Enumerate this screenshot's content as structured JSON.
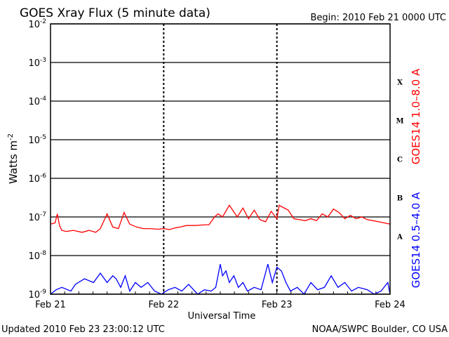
{
  "chart_data": {
    "type": "line",
    "title": "GOES Xray Flux (5 minute data)",
    "begin_label": "Begin:  2010 Feb 21 0000 UTC",
    "updated_label": "Updated 2010 Feb 23 23:00:12 UTC",
    "credit": "NOAA/SWPC Boulder, CO USA",
    "xlabel": "Universal Time",
    "ylabel_text": "Watts m",
    "ylabel_sup": "-2",
    "x_ticks": [
      "Feb 21",
      "Feb 22",
      "Feb 23",
      "Feb 24"
    ],
    "x_range_days": [
      0,
      3
    ],
    "y_scale": "log",
    "y_range": [
      1e-09,
      0.01
    ],
    "y_ticks": [
      {
        "base": "10",
        "exp": "-2",
        "value": 0.01
      },
      {
        "base": "10",
        "exp": "-3",
        "value": 0.001
      },
      {
        "base": "10",
        "exp": "-4",
        "value": 0.0001
      },
      {
        "base": "10",
        "exp": "-5",
        "value": 1e-05
      },
      {
        "base": "10",
        "exp": "-6",
        "value": 1e-06
      },
      {
        "base": "10",
        "exp": "-7",
        "value": 1e-07
      },
      {
        "base": "10",
        "exp": "-8",
        "value": 1e-08
      },
      {
        "base": "10",
        "exp": "-9",
        "value": 1e-09
      }
    ],
    "flare_classes": [
      {
        "label": "X",
        "lower": 0.0001,
        "upper": 0.001
      },
      {
        "label": "M",
        "lower": 1e-05,
        "upper": 0.0001
      },
      {
        "label": "C",
        "lower": 1e-06,
        "upper": 1e-05
      },
      {
        "label": "B",
        "lower": 1e-07,
        "upper": 1e-06
      },
      {
        "label": "A",
        "lower": 1e-08,
        "upper": 1e-07
      }
    ],
    "grid": "horizontal lines at each decade; dashed verticals at day boundaries",
    "series": [
      {
        "name": "GOES14 1.0–8.0 A",
        "color": "#ff0000",
        "x": [
          0.0,
          0.04,
          0.06,
          0.08,
          0.1,
          0.14,
          0.2,
          0.28,
          0.34,
          0.4,
          0.44,
          0.5,
          0.55,
          0.6,
          0.65,
          0.7,
          0.76,
          0.82,
          0.88,
          0.95,
          1.0,
          1.05,
          1.1,
          1.15,
          1.2,
          1.28,
          1.35,
          1.4,
          1.45,
          1.48,
          1.52,
          1.58,
          1.65,
          1.7,
          1.75,
          1.8,
          1.85,
          1.9,
          1.95,
          2.0,
          2.02,
          2.05,
          2.1,
          2.15,
          2.2,
          2.25,
          2.3,
          2.35,
          2.4,
          2.45,
          2.5,
          2.55,
          2.6,
          2.65,
          2.7,
          2.75,
          2.8,
          2.85,
          2.9,
          2.95,
          3.0
        ],
        "y": [
          6.5e-08,
          7e-08,
          1.2e-07,
          6e-08,
          4.5e-08,
          4.2e-08,
          4.5e-08,
          4e-08,
          4.5e-08,
          4e-08,
          5e-08,
          1.2e-07,
          5.5e-08,
          5e-08,
          1.3e-07,
          6.5e-08,
          5.5e-08,
          5e-08,
          5e-08,
          4.8e-08,
          5e-08,
          4.7e-08,
          5.2e-08,
          5.5e-08,
          6e-08,
          6e-08,
          6.2e-08,
          6.3e-08,
          1e-07,
          1.2e-07,
          1e-07,
          2e-07,
          1e-07,
          1.7e-07,
          9e-08,
          1.5e-07,
          8.5e-08,
          7.5e-08,
          1.4e-07,
          9e-08,
          2e-07,
          1.8e-07,
          1.5e-07,
          9e-08,
          8.5e-08,
          8e-08,
          9e-08,
          8e-08,
          1.2e-07,
          1e-07,
          1.6e-07,
          1.3e-07,
          9e-08,
          1.1e-07,
          9e-08,
          1e-07,
          8.5e-08,
          8e-08,
          7.5e-08,
          7e-08,
          6.5e-08
        ]
      },
      {
        "name": "GOES14 0.5–4.0 A",
        "color": "#0000ff",
        "x": [
          0.0,
          0.05,
          0.1,
          0.18,
          0.22,
          0.3,
          0.38,
          0.44,
          0.5,
          0.55,
          0.58,
          0.62,
          0.66,
          0.7,
          0.75,
          0.8,
          0.86,
          0.92,
          0.98,
          1.04,
          1.1,
          1.16,
          1.22,
          1.3,
          1.36,
          1.42,
          1.46,
          1.5,
          1.52,
          1.55,
          1.58,
          1.62,
          1.66,
          1.7,
          1.74,
          1.8,
          1.86,
          1.92,
          1.96,
          2.0,
          2.04,
          2.08,
          2.12,
          2.18,
          2.24,
          2.3,
          2.36,
          2.42,
          2.48,
          2.54,
          2.6,
          2.66,
          2.72,
          2.8,
          2.86,
          2.92,
          2.98,
          3.0
        ],
        "y": [
          1e-09,
          1.3e-09,
          1.5e-09,
          1.2e-09,
          1.8e-09,
          2.5e-09,
          2e-09,
          3.5e-09,
          2e-09,
          3e-09,
          2.5e-09,
          1.5e-09,
          3e-09,
          1.2e-09,
          2e-09,
          1.5e-09,
          2e-09,
          1.2e-09,
          1e-09,
          1.3e-09,
          1.5e-09,
          1.2e-09,
          1.8e-09,
          1e-09,
          1.3e-09,
          1.2e-09,
          1.5e-09,
          6e-09,
          3e-09,
          4e-09,
          2e-09,
          3e-09,
          1.5e-09,
          2e-09,
          1.2e-09,
          1.5e-09,
          1.3e-09,
          6e-09,
          2e-09,
          5e-09,
          4e-09,
          2e-09,
          1.2e-09,
          1.5e-09,
          1e-09,
          2e-09,
          1.3e-09,
          1.5e-09,
          3e-09,
          1.5e-09,
          2e-09,
          1.2e-09,
          1.5e-09,
          1.3e-09,
          1e-09,
          1.2e-09,
          2e-09,
          1e-09
        ]
      }
    ]
  }
}
